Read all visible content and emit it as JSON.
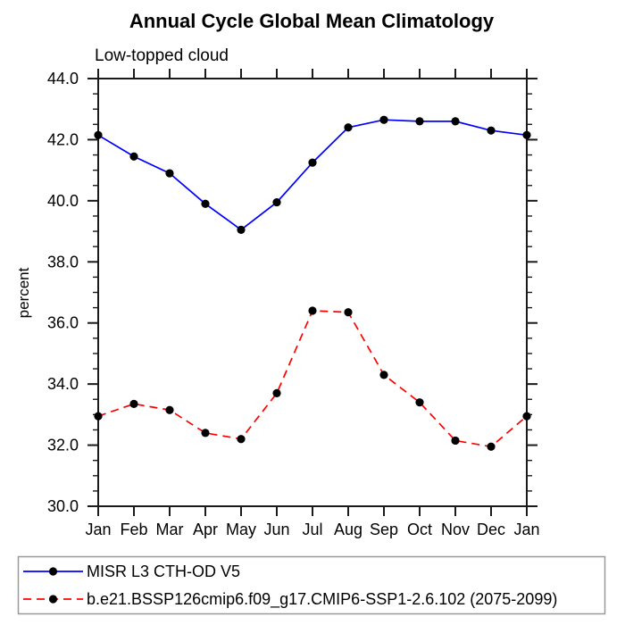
{
  "chart_data": {
    "type": "line",
    "title": "Annual Cycle Global Mean Climatology",
    "subtitle": "Low-topped cloud",
    "ylabel": "percent",
    "xlabel": "",
    "ylim": [
      30.0,
      44.0
    ],
    "ytick_major_step": 2.0,
    "ytick_minor_step": 0.5,
    "y_tick_labels": [
      "30.0",
      "32.0",
      "34.0",
      "36.0",
      "38.0",
      "40.0",
      "42.0",
      "44.0"
    ],
    "categories": [
      "Jan",
      "Feb",
      "Mar",
      "Apr",
      "May",
      "Jun",
      "Jul",
      "Aug",
      "Sep",
      "Oct",
      "Nov",
      "Dec",
      "Jan"
    ],
    "grid": false,
    "legend_position": "below-plot-boxed",
    "marker": {
      "shape": "filled-circle",
      "color": "#000000"
    },
    "axis_color": "#1a1a1a",
    "legend_border_color": "#999999",
    "series": [
      {
        "name": "MISR L3 CTH-OD V5",
        "color": "#0000ff",
        "line_style": "solid",
        "values": [
          42.15,
          41.45,
          40.9,
          39.9,
          39.05,
          39.95,
          41.25,
          42.4,
          42.65,
          42.6,
          42.6,
          42.3,
          42.15
        ]
      },
      {
        "name": "b.e21.BSSP126cmip6.f09_g17.CMIP6-SSP1-2.6.102 (2075-2099)",
        "color": "#ff0000",
        "line_style": "dashed",
        "values": [
          32.95,
          33.35,
          33.15,
          32.4,
          32.2,
          33.7,
          36.4,
          36.35,
          34.3,
          33.4,
          32.15,
          31.95,
          32.95
        ]
      }
    ]
  }
}
